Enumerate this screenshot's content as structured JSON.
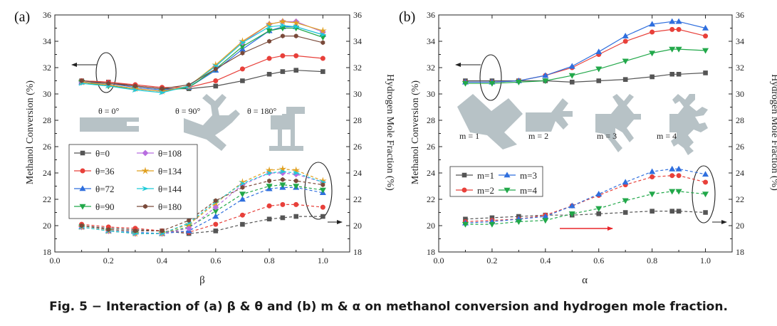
{
  "caption": "Fig. 5 − Interaction of (a) β & θ and (b) m & α on methanol conversion and hydrogen mole fraction.",
  "chart_data": [
    {
      "type": "line",
      "panel_label": "(a)",
      "xlabel": "β",
      "ylabel": "Methanol Conversion (%)",
      "ylabel_right": "Hydrogen Mole Fraction (%)",
      "xlim": [
        0.0,
        1.1
      ],
      "ylim": [
        18,
        36
      ],
      "x_ticks": [
        "0.0",
        "0.2",
        "0.4",
        "0.6",
        "0.8",
        "1.0"
      ],
      "y_ticks": [
        "18",
        "20",
        "22",
        "24",
        "26",
        "28",
        "30",
        "32",
        "34",
        "36"
      ],
      "grid": false,
      "legend_position": "middle-left",
      "x": [
        0.1,
        0.2,
        0.3,
        0.4,
        0.5,
        0.6,
        0.7,
        0.8,
        0.85,
        0.9,
        1.0
      ],
      "annotations": [
        "θ = 0°",
        "θ = 90°",
        "θ = 180°"
      ],
      "series": [
        {
          "name": "θ=0",
          "marker": "square",
          "color": "#555555",
          "methanol": [
            31.0,
            30.9,
            30.6,
            30.4,
            30.4,
            30.6,
            31.0,
            31.5,
            31.7,
            31.8,
            31.7
          ],
          "hydrogen": [
            20.0,
            19.8,
            19.7,
            19.6,
            19.4,
            19.6,
            20.1,
            20.5,
            20.6,
            20.7,
            20.7
          ]
        },
        {
          "name": "θ=36",
          "marker": "circle",
          "color": "#e8403a",
          "methanol": [
            31.0,
            30.9,
            30.7,
            30.5,
            30.5,
            31.0,
            31.9,
            32.7,
            32.9,
            32.9,
            32.7
          ],
          "hydrogen": [
            20.1,
            19.9,
            19.8,
            19.6,
            19.5,
            20.1,
            20.8,
            21.5,
            21.6,
            21.6,
            21.4
          ]
        },
        {
          "name": "θ=72",
          "marker": "triangle-up",
          "color": "#2f6fde",
          "methanol": [
            30.9,
            30.8,
            30.5,
            30.3,
            30.5,
            31.8,
            33.4,
            34.8,
            35.1,
            35.1,
            34.5
          ],
          "hydrogen": [
            19.9,
            19.6,
            19.5,
            19.4,
            19.6,
            20.7,
            22.0,
            22.8,
            22.9,
            22.9,
            22.5
          ]
        },
        {
          "name": "θ=90",
          "marker": "triangle-down",
          "color": "#22a84a",
          "methanol": [
            30.9,
            30.6,
            30.4,
            30.2,
            30.5,
            31.9,
            33.6,
            34.8,
            35.0,
            35.0,
            34.3
          ],
          "hydrogen": [
            19.9,
            19.6,
            19.4,
            19.4,
            19.9,
            21.1,
            22.4,
            23.0,
            23.1,
            23.0,
            22.7
          ]
        },
        {
          "name": "θ=108",
          "marker": "diamond",
          "color": "#b86de0",
          "methanol": [
            30.9,
            30.7,
            30.4,
            30.2,
            30.6,
            32.1,
            33.9,
            35.3,
            35.5,
            35.5,
            34.7
          ],
          "hydrogen": [
            19.9,
            19.6,
            19.4,
            19.4,
            19.8,
            21.4,
            23.1,
            24.0,
            24.0,
            23.9,
            23.3
          ]
        },
        {
          "name": "θ=134",
          "marker": "star",
          "color": "#e0a020",
          "methanol": [
            30.9,
            30.7,
            30.4,
            30.2,
            30.6,
            32.2,
            34.0,
            35.3,
            35.5,
            35.4,
            34.8
          ],
          "hydrogen": [
            19.9,
            19.6,
            19.4,
            19.4,
            20.1,
            21.7,
            23.3,
            24.2,
            24.3,
            24.2,
            23.4
          ]
        },
        {
          "name": "θ=144",
          "marker": "arrow",
          "color": "#1dcbd8",
          "methanol": [
            30.8,
            30.6,
            30.3,
            30.1,
            30.6,
            32.1,
            33.9,
            35.1,
            35.2,
            35.1,
            34.5
          ],
          "hydrogen": [
            19.9,
            19.6,
            19.4,
            19.4,
            20.2,
            21.8,
            23.2,
            24.0,
            24.1,
            24.0,
            23.3
          ]
        },
        {
          "name": "θ=180",
          "marker": "hexagon",
          "color": "#7a4a3a",
          "methanol": [
            31.0,
            30.8,
            30.6,
            30.4,
            30.7,
            31.9,
            33.1,
            34.0,
            34.4,
            34.4,
            33.9
          ],
          "hydrogen": [
            20.0,
            19.7,
            19.6,
            19.6,
            20.4,
            21.9,
            22.9,
            23.4,
            23.5,
            23.4,
            23.1
          ]
        }
      ]
    },
    {
      "type": "line",
      "panel_label": "(b)",
      "xlabel": "α",
      "ylabel": "Methanol Conversion (%)",
      "ylabel_right": "Hydrogen Mole Fraction (%)",
      "xlim": [
        0.0,
        1.1
      ],
      "ylim": [
        18,
        36
      ],
      "x_ticks": [
        "0.0",
        "0.2",
        "0.4",
        "0.6",
        "0.8",
        "1.0"
      ],
      "y_ticks": [
        "18",
        "20",
        "22",
        "24",
        "26",
        "28",
        "30",
        "32",
        "34",
        "36"
      ],
      "grid": false,
      "legend_position": "middle-left",
      "x": [
        0.1,
        0.2,
        0.3,
        0.4,
        0.5,
        0.6,
        0.7,
        0.8,
        0.875,
        0.9,
        1.0
      ],
      "annotations": [
        "m = 1",
        "m = 2",
        "m = 3",
        "m = 4"
      ],
      "series": [
        {
          "name": "m=1",
          "marker": "square",
          "color": "#555555",
          "methanol": [
            31.0,
            31.0,
            31.0,
            31.0,
            30.9,
            31.0,
            31.1,
            31.3,
            31.5,
            31.5,
            31.6
          ],
          "hydrogen": [
            20.5,
            20.6,
            20.7,
            20.8,
            20.8,
            20.9,
            21.0,
            21.1,
            21.1,
            21.1,
            21.0
          ]
        },
        {
          "name": "m=2",
          "marker": "circle",
          "color": "#e8403a",
          "methanol": [
            30.9,
            30.9,
            31.0,
            31.4,
            32.0,
            33.0,
            34.0,
            34.7,
            34.9,
            34.9,
            34.4
          ],
          "hydrogen": [
            20.3,
            20.4,
            20.5,
            20.8,
            21.5,
            22.3,
            23.1,
            23.7,
            23.8,
            23.8,
            23.3
          ]
        },
        {
          "name": "m=3",
          "marker": "triangle-up",
          "color": "#2f6fde",
          "methanol": [
            30.9,
            30.9,
            31.0,
            31.4,
            32.1,
            33.2,
            34.4,
            35.3,
            35.5,
            35.5,
            35.0
          ],
          "hydrogen": [
            20.2,
            20.3,
            20.5,
            20.7,
            21.5,
            22.4,
            23.3,
            24.1,
            24.3,
            24.3,
            23.9
          ]
        },
        {
          "name": "m=4",
          "marker": "triangle-down",
          "color": "#22a84a",
          "methanol": [
            30.8,
            30.8,
            30.9,
            31.0,
            31.4,
            31.9,
            32.5,
            33.1,
            33.4,
            33.4,
            33.3
          ],
          "hydrogen": [
            20.1,
            20.1,
            20.3,
            20.4,
            20.9,
            21.3,
            21.9,
            22.4,
            22.6,
            22.6,
            22.4
          ]
        }
      ]
    }
  ]
}
